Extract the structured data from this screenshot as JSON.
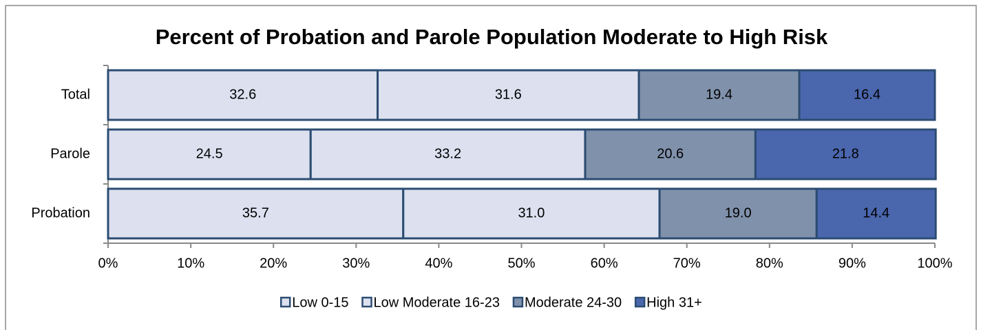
{
  "chart_data": {
    "type": "stacked_bar_horizontal",
    "title": "Percent of Probation and Parole Population Moderate to High Risk",
    "categories": [
      "Total",
      "Parole",
      "Probation"
    ],
    "series": [
      {
        "name": "Low 0-15",
        "color": "#dce0ef",
        "values": [
          32.6,
          24.5,
          35.7
        ],
        "value_labels": [
          "32.6",
          "24.5",
          "35.7"
        ]
      },
      {
        "name": "Low Moderate 16-23",
        "color": "#dce0ef",
        "values": [
          31.6,
          33.2,
          31
        ],
        "value_labels": [
          "31.6",
          "33.2",
          "31.0"
        ]
      },
      {
        "name": "Moderate 24-30",
        "color": "#8091ab",
        "values": [
          19.4,
          20.6,
          19
        ],
        "value_labels": [
          "19.4",
          "20.6",
          "19.0"
        ]
      },
      {
        "name": "High 31+",
        "color": "#4a66ad",
        "values": [
          16.4,
          21.8,
          14.4
        ],
        "value_labels": [
          "16.4",
          "21.8",
          "14.4"
        ]
      }
    ],
    "xlim": [
      0,
      100
    ],
    "xticks": [
      {
        "value": 0,
        "label": "0%"
      },
      {
        "value": 10,
        "label": "10%"
      },
      {
        "value": 20,
        "label": "20%"
      },
      {
        "value": 30,
        "label": "30%"
      },
      {
        "value": 40,
        "label": "40%"
      },
      {
        "value": 50,
        "label": "50%"
      },
      {
        "value": 60,
        "label": "60%"
      },
      {
        "value": 70,
        "label": "70%"
      },
      {
        "value": 80,
        "label": "80%"
      },
      {
        "value": 90,
        "label": "90%"
      },
      {
        "value": 100,
        "label": "100%"
      }
    ],
    "legend": "bottom"
  }
}
